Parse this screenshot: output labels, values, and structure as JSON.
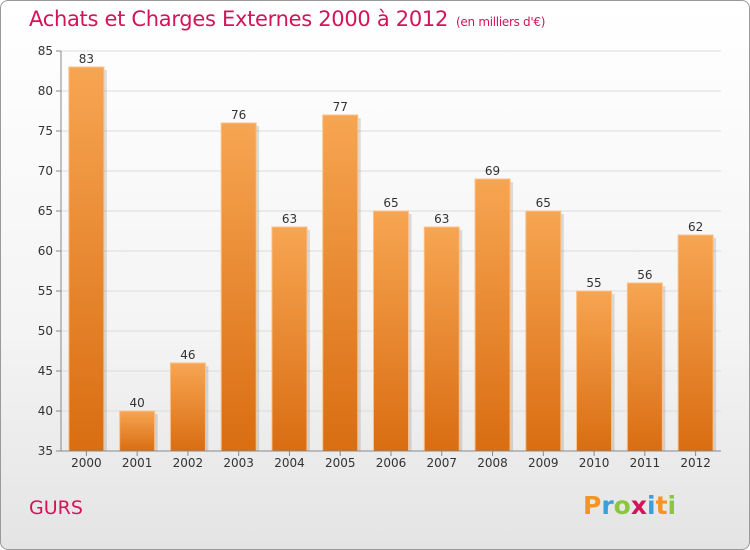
{
  "chart_data": {
    "type": "bar",
    "title": "Achats et Charges Externes 2000 à 2012",
    "unit_label": "(en milliers d'€)",
    "categories": [
      "2000",
      "2001",
      "2002",
      "2003",
      "2004",
      "2005",
      "2006",
      "2007",
      "2008",
      "2009",
      "2010",
      "2011",
      "2012"
    ],
    "values": [
      83,
      40,
      46,
      76,
      63,
      77,
      65,
      63,
      69,
      65,
      55,
      56,
      62
    ],
    "ylim": [
      35,
      85
    ],
    "yticks": [
      35,
      40,
      45,
      50,
      55,
      60,
      65,
      70,
      75,
      80,
      85
    ],
    "xlabel": "",
    "ylabel": "",
    "grid": true,
    "bar_color_top": "#f7a552",
    "bar_color_bottom": "#d96d12"
  },
  "place_name": "GURS",
  "logo": {
    "letters": [
      "P",
      "r",
      "o",
      "x",
      "i",
      "t",
      "i"
    ],
    "colors": [
      "#f7931e",
      "#3aa0dc",
      "#8cc63f",
      "#d4145a",
      "#3aa0dc",
      "#f7931e",
      "#8cc63f"
    ]
  }
}
